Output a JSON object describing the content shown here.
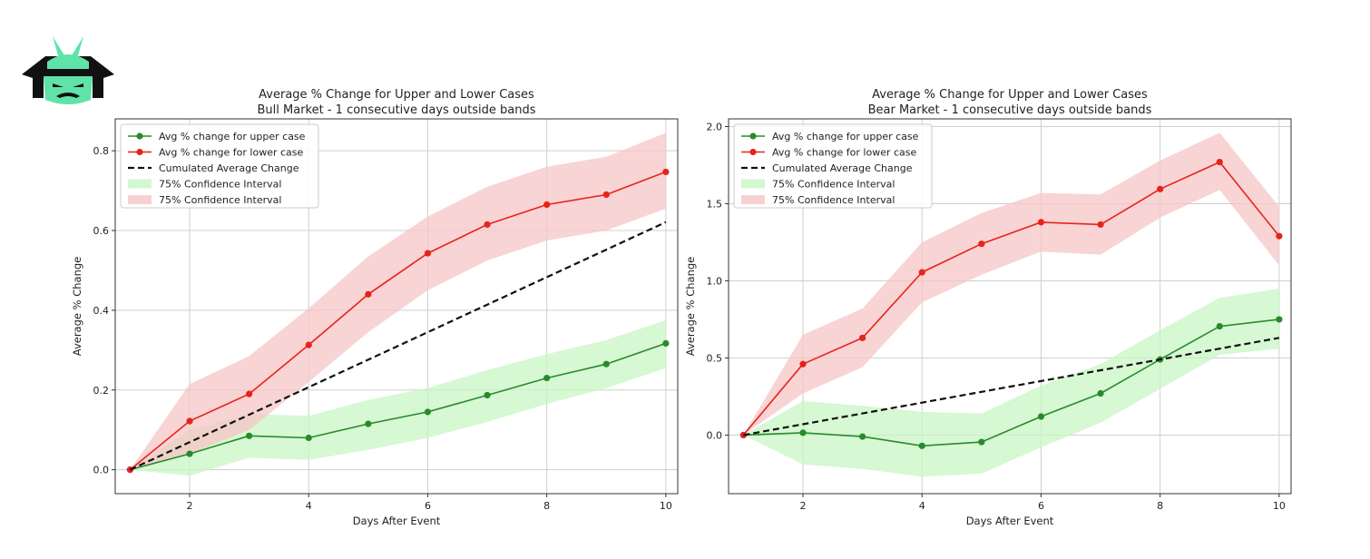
{
  "logo": {
    "icon": "samurai-helmet-icon",
    "colors": {
      "dark": "#111111",
      "accent": "#5fe3a8"
    }
  },
  "colors": {
    "upper": "#2a8a2a",
    "lower": "#e8221c",
    "upper_band": "#c8f5c4",
    "lower_band": "#f5c6c6",
    "cumulated": "#111111",
    "grid": "#cfcfcf"
  },
  "chart_data": [
    {
      "type": "line",
      "title": "Average % Change for Upper and Lower Cases",
      "subtitle": "Bull Market - 1 consecutive days outside bands",
      "xlabel": "Days After Event",
      "ylabel": "Average % Change",
      "xlim": [
        0.75,
        10.2
      ],
      "ylim": [
        -0.06,
        0.88
      ],
      "xticks": [
        2,
        4,
        6,
        8,
        10
      ],
      "yticks": [
        0.0,
        0.2,
        0.4,
        0.6,
        0.8
      ],
      "ytick_labels": [
        "0.0",
        "0.2",
        "0.4",
        "0.6",
        "0.8"
      ],
      "grid": true,
      "legend_position": "top-left",
      "x": [
        1,
        2,
        3,
        4,
        5,
        6,
        7,
        8,
        9,
        10
      ],
      "series": [
        {
          "name": "Avg % change for upper case",
          "kind": "line-marker",
          "color": "#2a8a2a",
          "values": [
            0.0,
            0.04,
            0.085,
            0.08,
            0.115,
            0.145,
            0.187,
            0.23,
            0.265,
            0.317
          ]
        },
        {
          "name": "Avg % change for lower case",
          "kind": "line-marker",
          "color": "#e8221c",
          "values": [
            0.0,
            0.122,
            0.19,
            0.313,
            0.44,
            0.543,
            0.615,
            0.665,
            0.69,
            0.747
          ]
        },
        {
          "name": "Cumulated Average Change",
          "kind": "dashed",
          "color": "#111111",
          "values": [
            0.0,
            0.069,
            0.138,
            0.207,
            0.276,
            0.345,
            0.414,
            0.483,
            0.552,
            0.621
          ]
        }
      ],
      "bands": [
        {
          "name": "75% Confidence Interval",
          "color": "#c8f5c4",
          "lower": [
            0.0,
            -0.015,
            0.03,
            0.025,
            0.05,
            0.08,
            0.12,
            0.165,
            0.205,
            0.255
          ],
          "upper": [
            0.0,
            0.1,
            0.14,
            0.135,
            0.175,
            0.205,
            0.25,
            0.29,
            0.325,
            0.375
          ]
        },
        {
          "name": "75% Confidence Interval",
          "color": "#f5c6c6",
          "lower": [
            0.0,
            0.04,
            0.1,
            0.22,
            0.345,
            0.45,
            0.525,
            0.575,
            0.6,
            0.655
          ],
          "upper": [
            0.0,
            0.215,
            0.285,
            0.405,
            0.535,
            0.635,
            0.71,
            0.76,
            0.785,
            0.845
          ]
        }
      ]
    },
    {
      "type": "line",
      "title": "Average % Change for Upper and Lower Cases",
      "subtitle": "Bear Market - 1 consecutive days outside bands",
      "xlabel": "Days After Event",
      "ylabel": "Average % Change",
      "xlim": [
        0.75,
        10.2
      ],
      "ylim": [
        -0.38,
        2.05
      ],
      "xticks": [
        2,
        4,
        6,
        8,
        10
      ],
      "yticks": [
        0.0,
        0.5,
        1.0,
        1.5,
        2.0
      ],
      "ytick_labels": [
        "0.0",
        "0.5",
        "1.0",
        "1.5",
        "2.0"
      ],
      "grid": true,
      "legend_position": "top-left",
      "x": [
        1,
        2,
        3,
        4,
        5,
        6,
        7,
        8,
        9,
        10
      ],
      "series": [
        {
          "name": "Avg % change for upper case",
          "kind": "line-marker",
          "color": "#2a8a2a",
          "values": [
            0.0,
            0.015,
            -0.01,
            -0.07,
            -0.045,
            0.12,
            0.27,
            0.49,
            0.705,
            0.75
          ]
        },
        {
          "name": "Avg % change for lower case",
          "kind": "line-marker",
          "color": "#e8221c",
          "values": [
            0.0,
            0.46,
            0.63,
            1.055,
            1.24,
            1.38,
            1.365,
            1.595,
            1.77,
            1.29
          ]
        },
        {
          "name": "Cumulated Average Change",
          "kind": "dashed",
          "color": "#111111",
          "values": [
            0.0,
            0.07,
            0.14,
            0.21,
            0.28,
            0.35,
            0.42,
            0.49,
            0.56,
            0.63
          ]
        }
      ],
      "bands": [
        {
          "name": "75% Confidence Interval",
          "color": "#c8f5c4",
          "lower": [
            0.0,
            -0.19,
            -0.22,
            -0.27,
            -0.25,
            -0.08,
            0.08,
            0.3,
            0.52,
            0.56
          ],
          "upper": [
            0.0,
            0.22,
            0.19,
            0.15,
            0.14,
            0.32,
            0.46,
            0.68,
            0.89,
            0.95
          ]
        },
        {
          "name": "75% Confidence Interval",
          "color": "#f5c6c6",
          "lower": [
            0.0,
            0.27,
            0.44,
            0.86,
            1.04,
            1.19,
            1.17,
            1.41,
            1.59,
            1.1
          ],
          "upper": [
            0.0,
            0.65,
            0.82,
            1.25,
            1.44,
            1.57,
            1.56,
            1.78,
            1.96,
            1.48
          ]
        }
      ]
    }
  ]
}
